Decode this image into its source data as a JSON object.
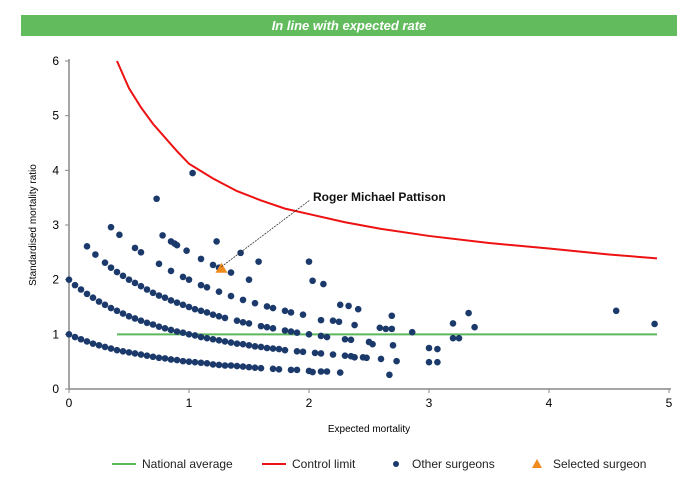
{
  "banner": "In line with expected rate",
  "chart_data": {
    "type": "scatter",
    "title": "",
    "xlabel": "Expected mortality",
    "ylabel": "Standardised mortality ratio",
    "xlim": [
      0,
      5
    ],
    "ylim": [
      0,
      6
    ],
    "xticks": [
      "0",
      "1",
      "2",
      "3",
      "4",
      "5"
    ],
    "yticks": [
      "0",
      "1",
      "2",
      "3",
      "4",
      "5",
      "6"
    ],
    "grid": false,
    "legend_position": "bottom",
    "annotation": {
      "text": "Roger Michael Pattison",
      "x": 1.27,
      "y": 2.2
    },
    "colors": {
      "national": "#5cb85c",
      "control": "#ee1111",
      "others": "#1b3a6b",
      "selected": "#f08a1c"
    },
    "series": [
      {
        "name": "National average",
        "type": "line",
        "points": [
          [
            0.4,
            1
          ],
          [
            4.9,
            1
          ]
        ]
      },
      {
        "name": "Control limit",
        "type": "line",
        "points": [
          [
            0.4,
            6
          ],
          [
            0.5,
            5.5
          ],
          [
            0.6,
            5.15
          ],
          [
            0.7,
            4.85
          ],
          [
            0.8,
            4.6
          ],
          [
            0.9,
            4.35
          ],
          [
            1.0,
            4.12
          ],
          [
            1.2,
            3.85
          ],
          [
            1.4,
            3.62
          ],
          [
            1.6,
            3.45
          ],
          [
            1.8,
            3.3
          ],
          [
            2.0,
            3.2
          ],
          [
            2.3,
            3.05
          ],
          [
            2.6,
            2.93
          ],
          [
            3.0,
            2.8
          ],
          [
            3.5,
            2.67
          ],
          [
            4.0,
            2.57
          ],
          [
            4.5,
            2.46
          ],
          [
            4.9,
            2.39
          ]
        ]
      },
      {
        "name": "Other surgeons",
        "type": "scatter",
        "points": [
          [
            0,
            1
          ],
          [
            0.05,
            0.95
          ],
          [
            0.1,
            0.91
          ],
          [
            0.15,
            0.87
          ],
          [
            0.2,
            0.83
          ],
          [
            0.25,
            0.8
          ],
          [
            0.3,
            0.77
          ],
          [
            0.35,
            0.74
          ],
          [
            0.4,
            0.71
          ],
          [
            0.45,
            0.69
          ],
          [
            0.5,
            0.67
          ],
          [
            0.55,
            0.65
          ],
          [
            0.6,
            0.63
          ],
          [
            0.65,
            0.61
          ],
          [
            0.7,
            0.59
          ],
          [
            0.75,
            0.57
          ],
          [
            0.8,
            0.56
          ],
          [
            0.85,
            0.54
          ],
          [
            0.9,
            0.53
          ],
          [
            0.95,
            0.51
          ],
          [
            1.0,
            0.5
          ],
          [
            1.05,
            0.49
          ],
          [
            1.1,
            0.48
          ],
          [
            1.15,
            0.47
          ],
          [
            1.2,
            0.45
          ],
          [
            1.25,
            0.44
          ],
          [
            1.3,
            0.43
          ],
          [
            1.35,
            0.43
          ],
          [
            1.4,
            0.42
          ],
          [
            1.45,
            0.41
          ],
          [
            1.5,
            0.4
          ],
          [
            1.55,
            0.39
          ],
          [
            1.6,
            0.38
          ],
          [
            1.7,
            0.37
          ],
          [
            1.75,
            0.36
          ],
          [
            1.85,
            0.35
          ],
          [
            1.9,
            0.35
          ],
          [
            2.0,
            0.33
          ],
          [
            2.1,
            0.32
          ],
          [
            2.15,
            0.32
          ],
          [
            0,
            2
          ],
          [
            0.05,
            1.9
          ],
          [
            0.1,
            1.82
          ],
          [
            0.15,
            1.74
          ],
          [
            0.2,
            1.67
          ],
          [
            0.25,
            1.6
          ],
          [
            0.3,
            1.54
          ],
          [
            0.35,
            1.48
          ],
          [
            0.4,
            1.43
          ],
          [
            0.45,
            1.38
          ],
          [
            0.5,
            1.33
          ],
          [
            0.55,
            1.29
          ],
          [
            0.6,
            1.25
          ],
          [
            0.65,
            1.21
          ],
          [
            0.7,
            1.18
          ],
          [
            0.75,
            1.14
          ],
          [
            0.8,
            1.11
          ],
          [
            0.85,
            1.08
          ],
          [
            0.9,
            1.05
          ],
          [
            0.95,
            1.03
          ],
          [
            1.0,
            1
          ],
          [
            1.05,
            0.98
          ],
          [
            1.1,
            0.95
          ],
          [
            1.15,
            0.93
          ],
          [
            1.2,
            0.91
          ],
          [
            1.25,
            0.89
          ],
          [
            1.3,
            0.87
          ],
          [
            1.35,
            0.85
          ],
          [
            1.4,
            0.83
          ],
          [
            1.45,
            0.82
          ],
          [
            1.5,
            0.8
          ],
          [
            1.55,
            0.78
          ],
          [
            1.6,
            0.77
          ],
          [
            1.65,
            0.75
          ],
          [
            1.7,
            0.74
          ],
          [
            1.75,
            0.73
          ],
          [
            1.8,
            0.71
          ],
          [
            1.9,
            0.69
          ],
          [
            1.95,
            0.68
          ],
          [
            2.05,
            0.66
          ],
          [
            2.1,
            0.65
          ],
          [
            2.2,
            0.63
          ],
          [
            2.3,
            0.61
          ],
          [
            2.35,
            0.6
          ],
          [
            2.45,
            0.58
          ],
          [
            0.15,
            2.61
          ],
          [
            0.22,
            2.46
          ],
          [
            0.3,
            2.31
          ],
          [
            0.35,
            2.22
          ],
          [
            0.4,
            2.14
          ],
          [
            0.45,
            2.07
          ],
          [
            0.5,
            2
          ],
          [
            0.55,
            1.94
          ],
          [
            0.6,
            1.88
          ],
          [
            0.65,
            1.82
          ],
          [
            0.7,
            1.76
          ],
          [
            0.75,
            1.71
          ],
          [
            0.8,
            1.67
          ],
          [
            0.85,
            1.62
          ],
          [
            0.9,
            1.58
          ],
          [
            0.95,
            1.54
          ],
          [
            1.0,
            1.5
          ],
          [
            1.05,
            1.46
          ],
          [
            1.1,
            1.43
          ],
          [
            1.15,
            1.4
          ],
          [
            1.2,
            1.36
          ],
          [
            1.25,
            1.33
          ],
          [
            1.3,
            1.3
          ],
          [
            1.4,
            1.25
          ],
          [
            1.45,
            1.22
          ],
          [
            1.5,
            1.2
          ],
          [
            1.6,
            1.15
          ],
          [
            1.65,
            1.13
          ],
          [
            1.7,
            1.11
          ],
          [
            1.8,
            1.07
          ],
          [
            1.85,
            1.05
          ],
          [
            1.9,
            1.03
          ],
          [
            2.0,
            1
          ],
          [
            2.1,
            0.97
          ],
          [
            2.15,
            0.95
          ],
          [
            2.3,
            0.91
          ],
          [
            2.35,
            0.9
          ],
          [
            2.5,
            0.86
          ],
          [
            0.35,
            2.96
          ],
          [
            0.42,
            2.82
          ],
          [
            0.55,
            2.58
          ],
          [
            0.6,
            2.5
          ],
          [
            0.75,
            2.29
          ],
          [
            0.85,
            2.16
          ],
          [
            0.95,
            2.05
          ],
          [
            1.0,
            2
          ],
          [
            1.1,
            1.9
          ],
          [
            1.15,
            1.86
          ],
          [
            1.25,
            1.78
          ],
          [
            1.35,
            1.7
          ],
          [
            1.45,
            1.63
          ],
          [
            1.55,
            1.57
          ],
          [
            1.65,
            1.51
          ],
          [
            1.7,
            1.48
          ],
          [
            1.8,
            1.43
          ],
          [
            1.85,
            1.4
          ],
          [
            1.95,
            1.36
          ],
          [
            2.2,
            1.25
          ],
          [
            2.25,
            1.23
          ],
          [
            0.78,
            2.81
          ],
          [
            0.85,
            2.7
          ],
          [
            0.88,
            2.66
          ],
          [
            0.9,
            2.63
          ],
          [
            0.98,
            2.53
          ],
          [
            1.1,
            2.38
          ],
          [
            1.2,
            2.27
          ],
          [
            1.25,
            2.22
          ],
          [
            1.35,
            2.13
          ],
          [
            1.5,
            2.0
          ],
          [
            1.03,
            3.95
          ],
          [
            0.73,
            3.48
          ],
          [
            1.23,
            2.7
          ],
          [
            1.43,
            2.49
          ],
          [
            1.58,
            2.33
          ],
          [
            2.0,
            2.33
          ],
          [
            2.03,
            1.98
          ],
          [
            2.12,
            1.92
          ],
          [
            2.26,
            1.54
          ],
          [
            2.33,
            1.52
          ],
          [
            2.41,
            1.46
          ],
          [
            2.38,
            1.17
          ],
          [
            2.1,
            1.26
          ],
          [
            2.69,
            1.34
          ],
          [
            2.59,
            1.12
          ],
          [
            2.64,
            1.1
          ],
          [
            2.69,
            1.1
          ],
          [
            2.86,
            1.04
          ],
          [
            3.2,
            1.2
          ],
          [
            3.33,
            1.39
          ],
          [
            3.38,
            1.13
          ],
          [
            3.2,
            0.93
          ],
          [
            3.25,
            0.93
          ],
          [
            4.56,
            1.43
          ],
          [
            4.88,
            1.19
          ],
          [
            3.0,
            0.75
          ],
          [
            3.07,
            0.73
          ],
          [
            3.0,
            0.49
          ],
          [
            3.07,
            0.49
          ],
          [
            2.67,
            0.26
          ],
          [
            2.53,
            0.82
          ],
          [
            2.7,
            0.8
          ],
          [
            2.6,
            0.55
          ],
          [
            2.73,
            0.51
          ],
          [
            2.48,
            0.57
          ],
          [
            2.38,
            0.58
          ],
          [
            2.26,
            0.3
          ],
          [
            2.03,
            0.31
          ]
        ]
      },
      {
        "name": "Selected surgeon",
        "type": "scatter",
        "points": [
          [
            1.27,
            2.2
          ]
        ]
      }
    ]
  }
}
